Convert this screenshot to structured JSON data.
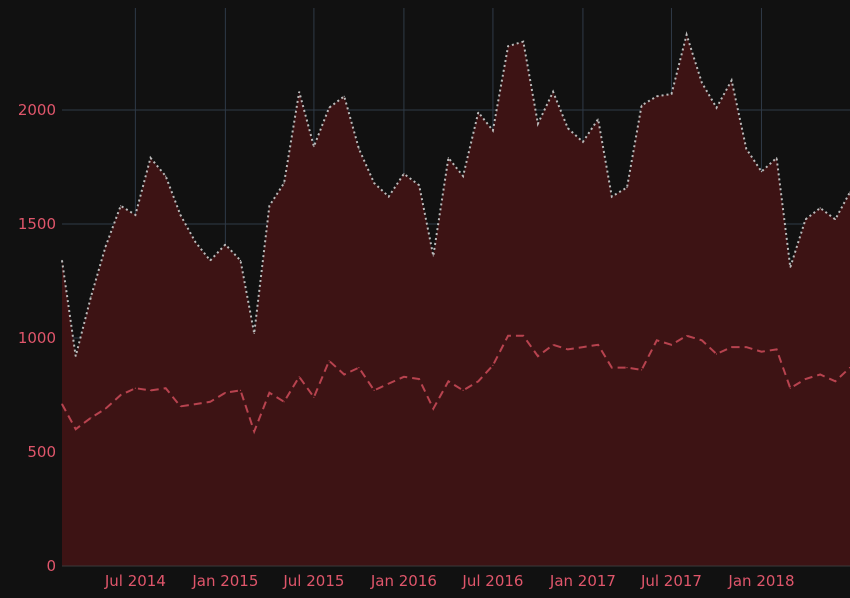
{
  "chart_data": {
    "type": "area",
    "title": "",
    "xlabel": "",
    "ylabel": "",
    "ylim": [
      0,
      2400
    ],
    "grid": true,
    "x_ticks": [
      "Jul 2014",
      "Jan 2015",
      "Jul 2015",
      "Jan 2016",
      "Jul 2016",
      "Jan 2017",
      "Jul 2017",
      "Jan 2018"
    ],
    "y_ticks": [
      "0",
      "500",
      "1000",
      "1500",
      "2000"
    ],
    "x": [
      "2014-02",
      "2014-03",
      "2014-04",
      "2014-05",
      "2014-06",
      "2014-07",
      "2014-08",
      "2014-09",
      "2014-10",
      "2014-11",
      "2014-12",
      "2015-01",
      "2015-02",
      "2015-03",
      "2015-04",
      "2015-05",
      "2015-06",
      "2015-07",
      "2015-08",
      "2015-09",
      "2015-10",
      "2015-11",
      "2015-12",
      "2016-01",
      "2016-02",
      "2016-03",
      "2016-04",
      "2016-05",
      "2016-06",
      "2016-07",
      "2016-08",
      "2016-09",
      "2016-10",
      "2016-11",
      "2016-12",
      "2017-01",
      "2017-02",
      "2017-03",
      "2017-04",
      "2017-05",
      "2017-06",
      "2017-07",
      "2017-08",
      "2017-09",
      "2017-10",
      "2017-11",
      "2017-12",
      "2018-01",
      "2018-02",
      "2018-03",
      "2018-04",
      "2018-05",
      "2018-06",
      "2018-07"
    ],
    "series": [
      {
        "style": "area-dotted",
        "color": "#bbbbbb",
        "fill": "#3d1314",
        "values": [
          1340,
          920,
          1180,
          1400,
          1580,
          1540,
          1790,
          1710,
          1540,
          1420,
          1340,
          1410,
          1340,
          1020,
          1580,
          1680,
          2080,
          1840,
          2010,
          2060,
          1830,
          1680,
          1620,
          1720,
          1670,
          1360,
          1790,
          1710,
          1990,
          1910,
          2280,
          2300,
          1940,
          2080,
          1920,
          1860,
          1960,
          1620,
          1660,
          2020,
          2060,
          2070,
          2330,
          2120,
          2010,
          2130,
          1830,
          1730,
          1790,
          1310,
          1520,
          1570,
          1520,
          1640
        ]
      },
      {
        "style": "dashed",
        "color": "#b8434f",
        "values": [
          710,
          600,
          650,
          690,
          750,
          780,
          770,
          780,
          700,
          710,
          720,
          760,
          770,
          590,
          760,
          720,
          830,
          740,
          900,
          840,
          870,
          770,
          800,
          830,
          820,
          690,
          810,
          770,
          810,
          880,
          1010,
          1010,
          920,
          970,
          950,
          960,
          970,
          870,
          870,
          860,
          990,
          970,
          1010,
          990,
          930,
          960,
          960,
          940,
          950,
          780,
          820,
          840,
          810,
          870
        ]
      }
    ]
  }
}
